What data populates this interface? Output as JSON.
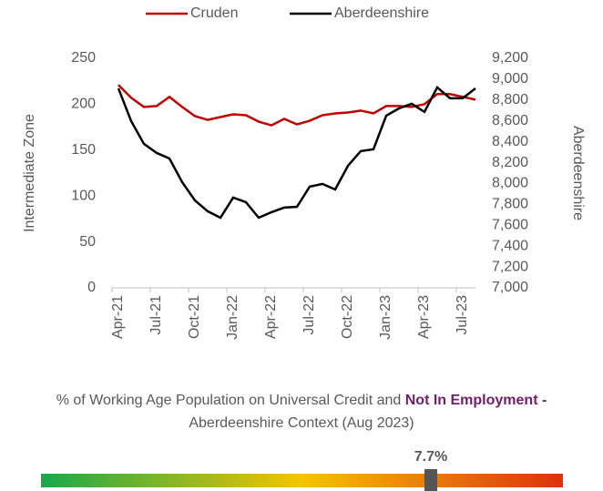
{
  "chart_data": {
    "type": "line",
    "categories": [
      "Apr-21",
      null,
      null,
      "Jul-21",
      null,
      null,
      "Oct-21",
      null,
      null,
      "Jan-22",
      null,
      null,
      "Apr-22",
      null,
      null,
      "Jul-22",
      null,
      null,
      "Oct-22",
      null,
      null,
      "Jan-23",
      null,
      null,
      "Apr-23",
      null,
      null,
      "Jul-23",
      null
    ],
    "series": [
      {
        "name": "Cruden",
        "color": "#c00000",
        "values": [
          221,
          207,
          197,
          198,
          208,
          197,
          187,
          183,
          186,
          189,
          188,
          181,
          177,
          184,
          178,
          182,
          188,
          190,
          191,
          193,
          190,
          198,
          198,
          197,
          200,
          211,
          211,
          208,
          205
        ]
      },
      {
        "name": "Aberdeenshire",
        "color": "#000000",
        "axis": "y2",
        "values": [
          8912,
          8598,
          8380,
          8293,
          8240,
          8013,
          7838,
          7734,
          7672,
          7865,
          7821,
          7672,
          7725,
          7769,
          7777,
          7970,
          7996,
          7943,
          8170,
          8310,
          8328,
          8650,
          8720,
          8764,
          8686,
          8921,
          8817,
          8817,
          8912
        ]
      }
    ],
    "ylabel": "Intermediate Zone",
    "y2label": "Aberdeenshire",
    "ylim": [
      0,
      250
    ],
    "yticks": [
      0,
      50,
      100,
      150,
      200,
      250
    ],
    "y2lim": [
      7000,
      9200
    ],
    "y2ticks": [
      {
        "value": 7000,
        "label": "7,000"
      },
      {
        "value": 7200,
        "label": "7,200"
      },
      {
        "value": 7400,
        "label": "7,400"
      },
      {
        "value": 7600,
        "label": "7,600"
      },
      {
        "value": 7800,
        "label": "7,800"
      },
      {
        "value": 8000,
        "label": "8,000"
      },
      {
        "value": 8200,
        "label": "8,200"
      },
      {
        "value": 8400,
        "label": "8,400"
      },
      {
        "value": 8600,
        "label": "8,600"
      },
      {
        "value": 8800,
        "label": "8,800"
      },
      {
        "value": 9000,
        "label": "9,000"
      },
      {
        "value": 9200,
        "label": "9,200"
      }
    ],
    "grid": false,
    "legend": "top"
  },
  "gauge": {
    "title_prefix": "% of Working Age Population on Universal Credit and",
    "title_highlight": "Not In Employment -",
    "title_suffix": "Aberdeenshire Context (Aug 2023)",
    "value": 7.7,
    "value_label": "7.7%"
  }
}
